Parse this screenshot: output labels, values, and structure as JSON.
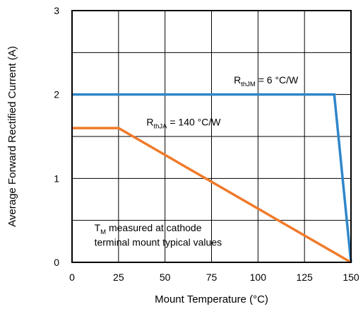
{
  "chart_data": {
    "type": "line",
    "xlabel": "Mount Temperature (°C)",
    "ylabel": "Average Forward Rectified Current (A)",
    "xlim": [
      0,
      150
    ],
    "ylim": [
      0,
      3
    ],
    "xticks": [
      0,
      25,
      50,
      75,
      100,
      125,
      150
    ],
    "yticks": [
      0,
      1,
      2,
      3
    ],
    "x_gridlines": [
      25,
      50,
      75,
      100,
      125
    ],
    "y_gridlines": [
      0.5,
      1,
      1.5,
      2,
      2.5
    ],
    "grid": true,
    "series": [
      {
        "color": "#2E86C9",
        "x": [
          0,
          141,
          150
        ],
        "y": [
          2,
          2,
          0
        ]
      },
      {
        "color": "#F07A2A",
        "x": [
          0,
          25,
          150
        ],
        "y": [
          1.6,
          1.6,
          0
        ]
      }
    ],
    "annotations": {
      "rthjm": {
        "main": "R",
        "sub": "thJM",
        "rest": " = 6 °C/W",
        "x": 87,
        "y": 2.13
      },
      "rthja": {
        "main": "R",
        "sub": "thJA",
        "rest": " = 140 °C/W",
        "x": 40,
        "y": 1.63
      },
      "note_line1": {
        "main": "T",
        "sub": "M",
        "rest": " measured at cathode",
        "x": 12,
        "y": 0.37
      },
      "note_line2": {
        "text": "terminal mount typical values",
        "x": 12,
        "y": 0.2
      }
    }
  }
}
